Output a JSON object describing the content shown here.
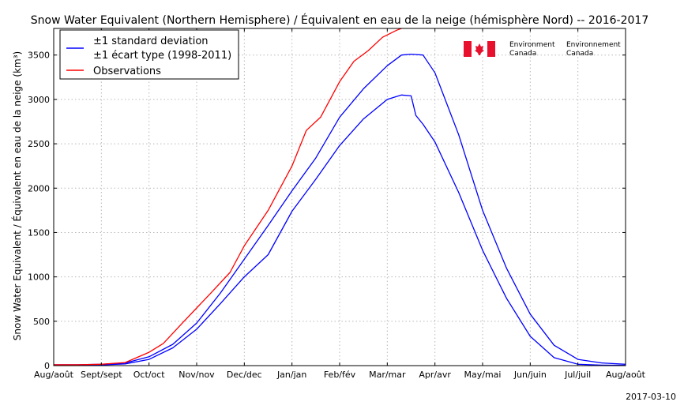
{
  "chart_data": {
    "type": "line",
    "title": "Snow Water Equivalent (Northern Hemisphere) / Équivalent en eau de la neige (hémisphère Nord) -- 2016-2017",
    "ylabel": "Snow Water Equivalent / Équivalent en eau de la neige (km³)",
    "xlabel": "",
    "ylim": [
      0,
      3800
    ],
    "xlim": [
      0,
      12
    ],
    "yticks": [
      0,
      500,
      1000,
      1500,
      2000,
      2500,
      3000,
      3500
    ],
    "x_tick_labels": [
      "Aug/août",
      "Sept/sept",
      "Oct/oct",
      "Nov/nov",
      "Dec/dec",
      "Jan/jan",
      "Feb/fév",
      "Mar/mar",
      "Apr/avr",
      "May/mai",
      "Jun/juin",
      "Jul/juil",
      "Aug/août"
    ],
    "grid": true,
    "legend_position": "top-left",
    "legend": [
      "±1 standard deviation",
      "±1 écart type (1998-2011)",
      "Observations"
    ],
    "series": [
      {
        "name": "±1 standard deviation (upper)",
        "color": "#0000ff",
        "x": [
          0,
          0.5,
          1,
          1.5,
          2,
          2.5,
          3,
          3.5,
          4,
          4.5,
          5,
          5.5,
          6,
          6.5,
          7,
          7.3,
          7.5,
          7.75,
          8,
          8.5,
          9,
          9.5,
          10,
          10.5,
          11,
          11.5,
          12
        ],
        "y": [
          10,
          10,
          15,
          30,
          100,
          240,
          480,
          820,
          1200,
          1580,
          1970,
          2340,
          2800,
          3120,
          3380,
          3500,
          3510,
          3500,
          3300,
          2600,
          1750,
          1100,
          580,
          230,
          70,
          30,
          15
        ]
      },
      {
        "name": "±1 standard deviation (lower)",
        "color": "#0000ff",
        "x": [
          0,
          0.5,
          1,
          1.5,
          2,
          2.5,
          3,
          3.5,
          4,
          4.5,
          5,
          5.5,
          6,
          6.5,
          7,
          7.3,
          7.5,
          7.6,
          7.75,
          8,
          8.5,
          9,
          9.5,
          10,
          10.5,
          11,
          11.5,
          12
        ],
        "y": [
          5,
          5,
          8,
          20,
          70,
          200,
          410,
          700,
          1000,
          1250,
          1740,
          2100,
          2480,
          2780,
          3000,
          3050,
          3040,
          2820,
          2720,
          2520,
          1950,
          1300,
          760,
          330,
          90,
          15,
          5,
          3
        ]
      },
      {
        "name": "Observations",
        "color": "#ff0000",
        "x": [
          0,
          0.5,
          1,
          1.5,
          2,
          2.3,
          2.7,
          3,
          3.3,
          3.7,
          4,
          4.5,
          5,
          5.3,
          5.6,
          6,
          6.3,
          6.6,
          6.9,
          7.2,
          7.3
        ],
        "y": [
          10,
          10,
          15,
          35,
          150,
          250,
          480,
          650,
          820,
          1050,
          1350,
          1750,
          2250,
          2650,
          2800,
          3200,
          3430,
          3550,
          3700,
          3780,
          3800
        ]
      }
    ]
  },
  "logo": {
    "org_en_1": "Environment",
    "org_en_2": "Canada",
    "org_fr_1": "Environnement",
    "org_fr_2": "Canada"
  },
  "footer": {
    "date": "2017-03-10"
  }
}
